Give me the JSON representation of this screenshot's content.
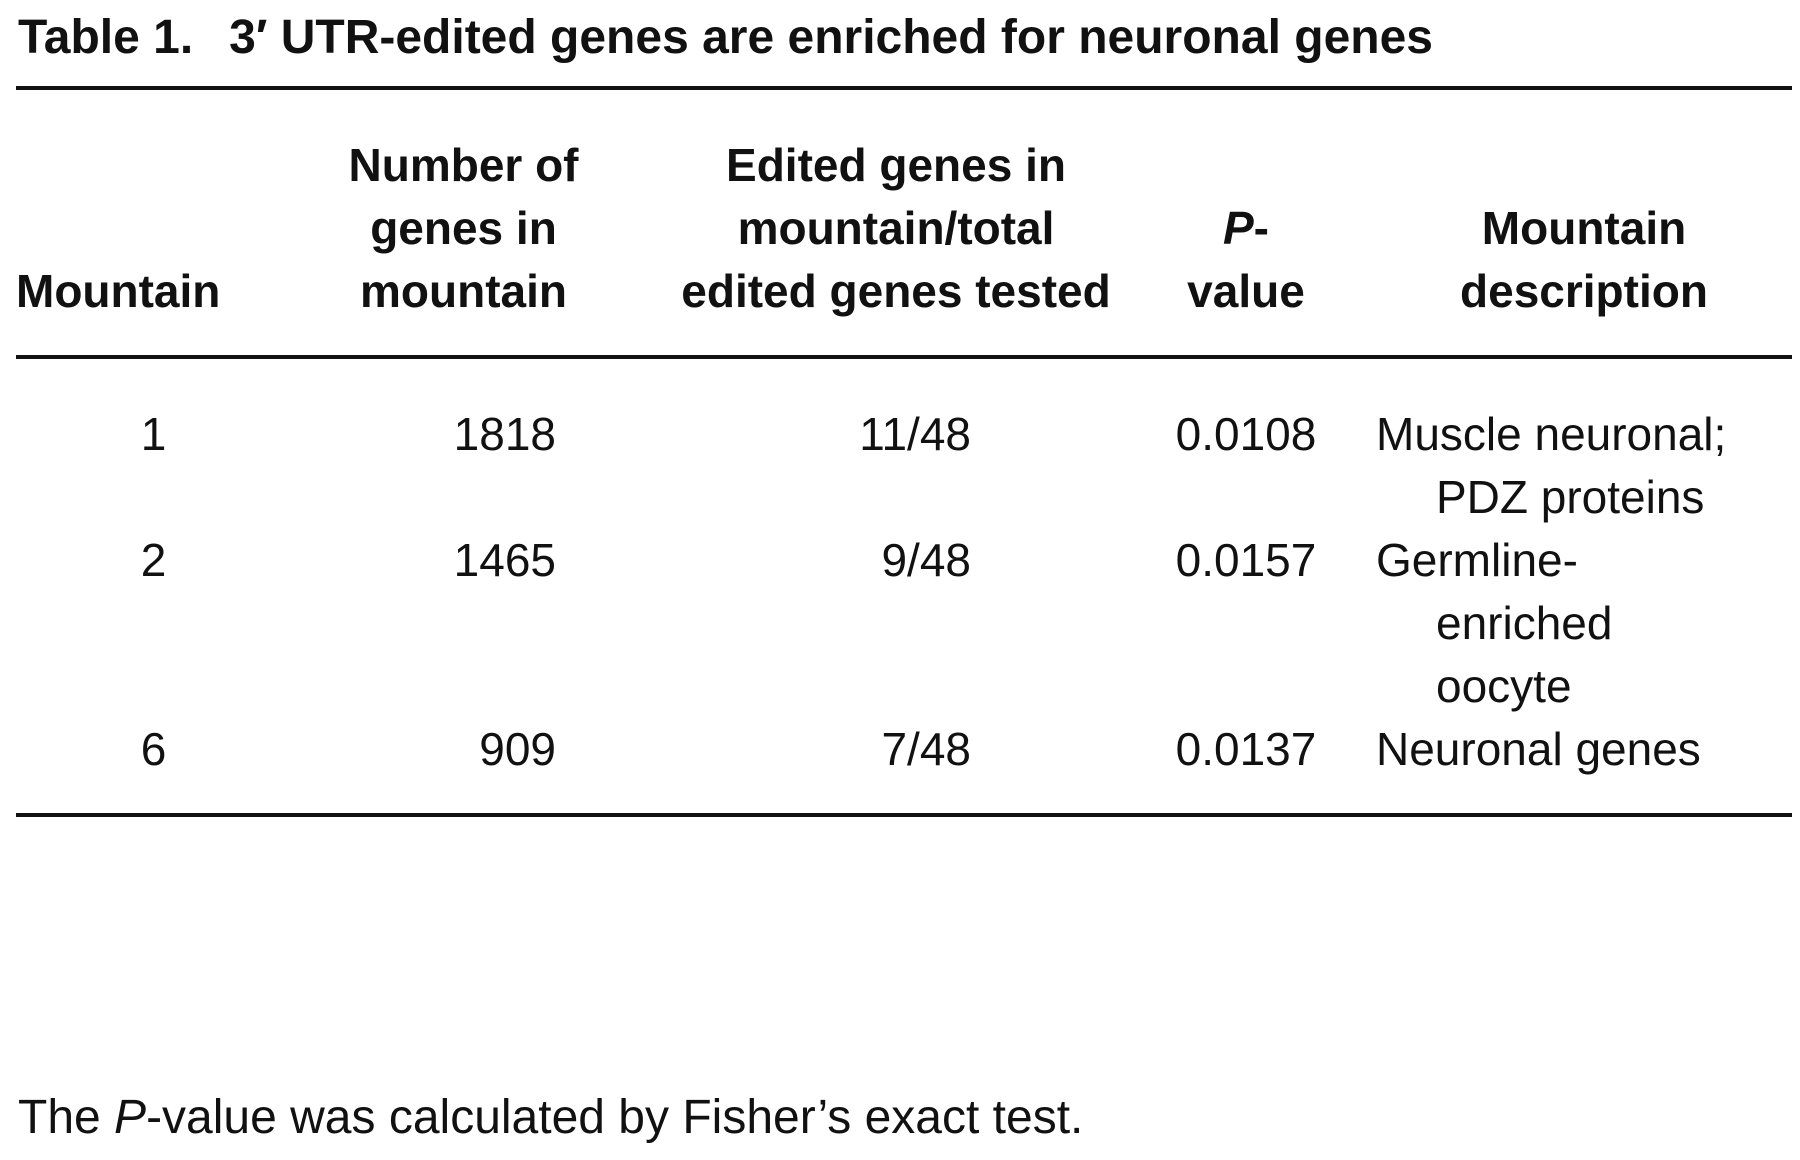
{
  "header": {
    "label": "Table 1.",
    "title": "3′ UTR-edited genes are enriched for neuronal genes"
  },
  "table": {
    "columns": [
      "Mountain",
      "Number of genes in mountain",
      "Edited genes in mountain/total edited genes tested",
      [
        "P",
        "-",
        "value"
      ],
      "Mountain description"
    ],
    "rows": [
      [
        "1",
        "1818",
        "11/48",
        "0.0108",
        "Muscle neuronal; PDZ proteins"
      ],
      [
        "2",
        "1465",
        "9/48",
        "0.0157",
        "Germline-enriched oocyte"
      ],
      [
        "6",
        "909",
        "7/48",
        "0.0137",
        "Neuronal genes"
      ]
    ]
  },
  "footnote": [
    "The ",
    "P",
    "-value was calculated by Fisher’s exact test."
  ]
}
